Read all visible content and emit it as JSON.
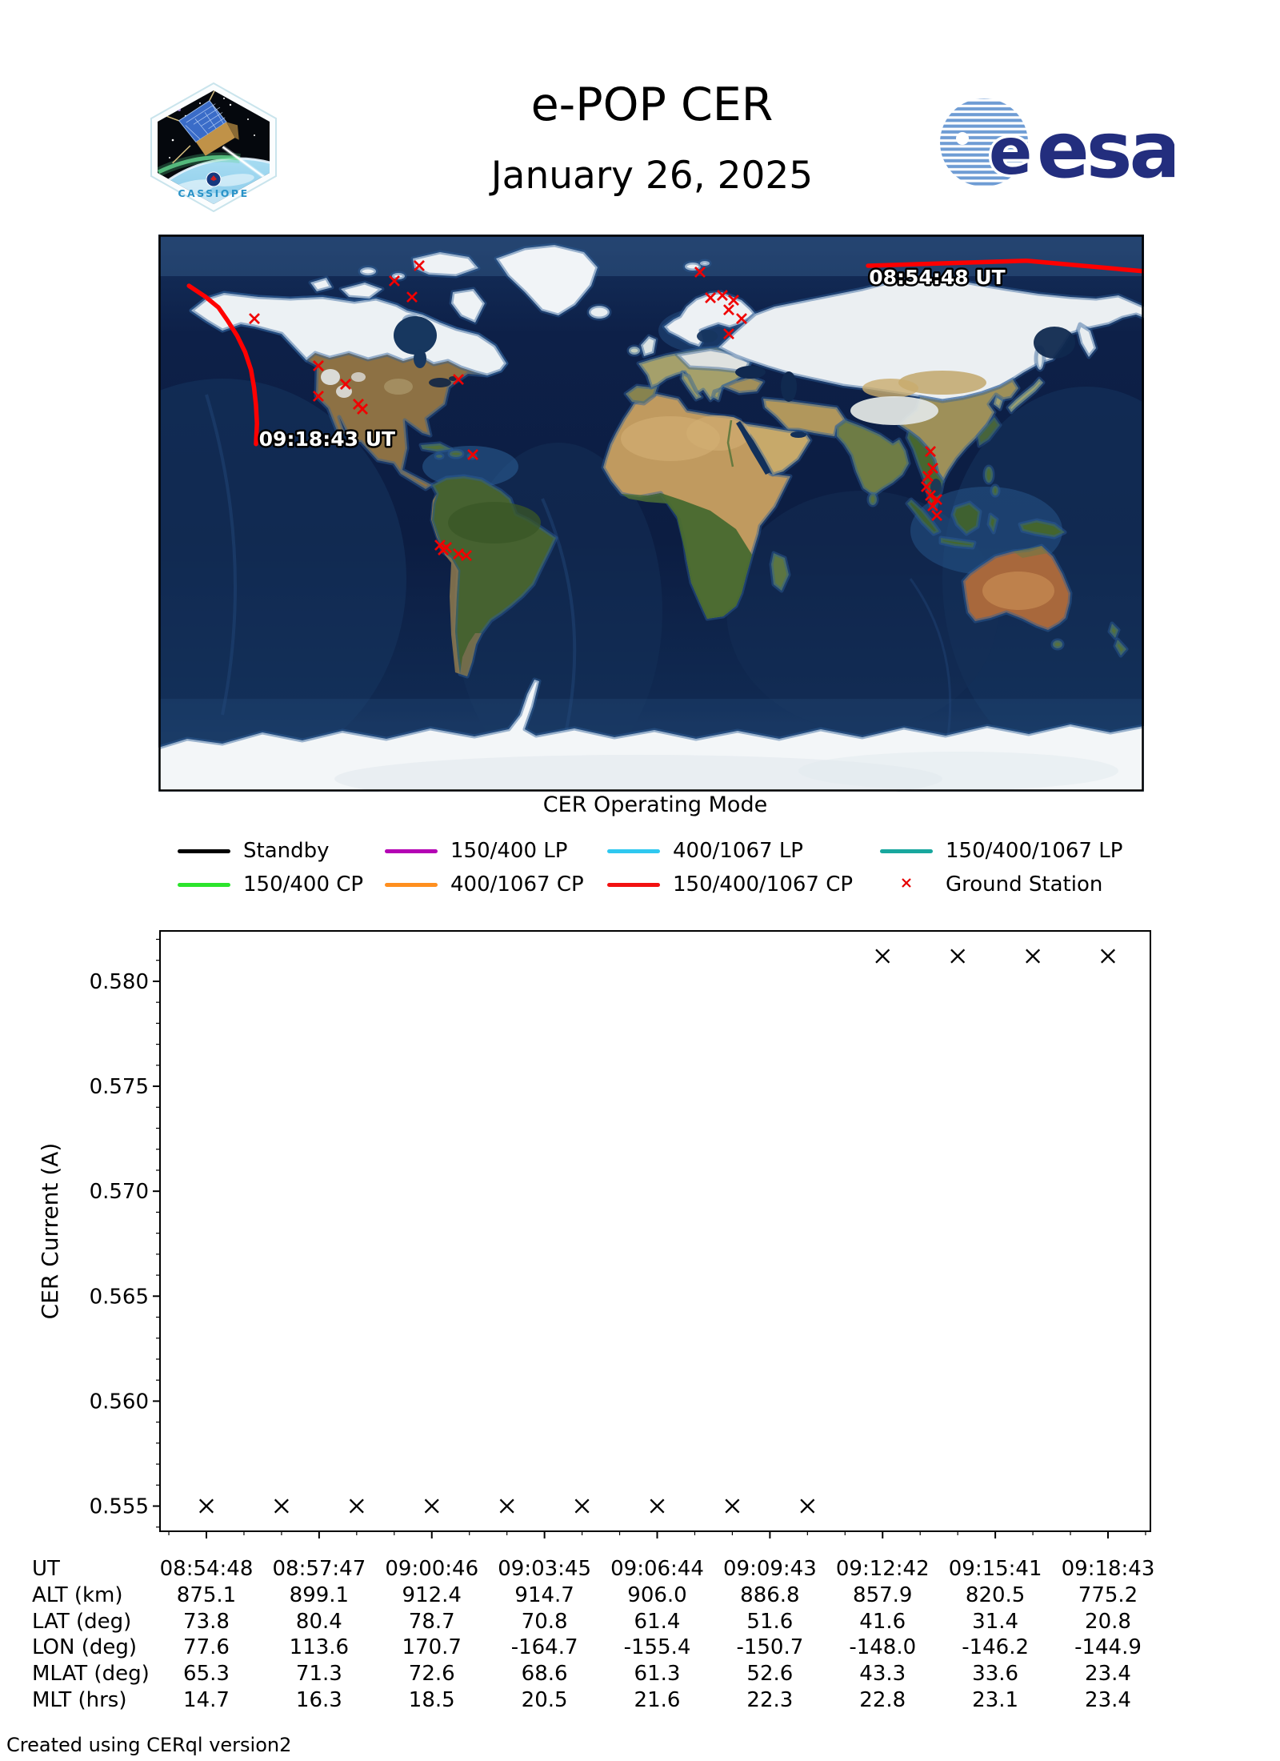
{
  "header": {
    "title": "e-POP CER",
    "date": "January 26, 2025",
    "patch_text": "CASSIOPE",
    "esa_e": "e",
    "esa_wordmark": "esa"
  },
  "map": {
    "pass_start_label": "08:54:48 UT",
    "pass_end_label": "09:18:43 UT",
    "track_color": "#ff0000",
    "station_color": "#f00000",
    "start_track": [
      [
        0.72,
        0.056
      ],
      [
        0.881,
        0.047
      ],
      [
        1.0,
        0.066
      ]
    ],
    "end_track": [
      [
        0.031,
        0.092
      ],
      [
        0.048,
        0.112
      ],
      [
        0.061,
        0.131
      ],
      [
        0.07,
        0.154
      ],
      [
        0.08,
        0.182
      ],
      [
        0.088,
        0.211
      ],
      [
        0.094,
        0.243
      ],
      [
        0.097,
        0.274
      ],
      [
        0.099,
        0.306
      ],
      [
        0.1,
        0.339
      ],
      [
        0.099,
        0.376
      ]
    ],
    "start_label_anchor": [
      0.721,
      0.089
    ],
    "end_label_anchor": [
      0.102,
      0.379
    ],
    "ground_stations": [
      [
        0.2646,
        0.056
      ],
      [
        0.2394,
        0.0833
      ],
      [
        0.2573,
        0.1121
      ],
      [
        0.0974,
        0.1509
      ],
      [
        0.5495,
        0.0675
      ],
      [
        0.5601,
        0.1135
      ],
      [
        0.5722,
        0.1092
      ],
      [
        0.5836,
        0.1178
      ],
      [
        0.5787,
        0.1351
      ],
      [
        0.5917,
        0.1509
      ],
      [
        0.5787,
        0.1782
      ],
      [
        0.1623,
        0.2356
      ],
      [
        0.1899,
        0.2687
      ],
      [
        0.1623,
        0.2902
      ],
      [
        0.2029,
        0.3046
      ],
      [
        0.207,
        0.3132
      ],
      [
        0.3044,
        0.2601
      ],
      [
        0.319,
        0.3951
      ],
      [
        0.2857,
        0.5575
      ],
      [
        0.289,
        0.5661
      ],
      [
        0.2922,
        0.5618
      ],
      [
        0.3044,
        0.5733
      ],
      [
        0.3125,
        0.5762
      ],
      [
        0.7833,
        0.3894
      ],
      [
        0.7857,
        0.4195
      ],
      [
        0.7808,
        0.4339
      ],
      [
        0.7792,
        0.4526
      ],
      [
        0.7833,
        0.4684
      ],
      [
        0.7898,
        0.4756
      ],
      [
        0.7857,
        0.4871
      ],
      [
        0.7898,
        0.5043
      ]
    ]
  },
  "legend": {
    "title": "CER Operating Mode",
    "rows": [
      [
        {
          "label": "Standby",
          "color": "#000000",
          "type": "line"
        },
        {
          "label": "150/400 LP",
          "color": "#b403b4",
          "type": "line"
        },
        {
          "label": "400/1067 LP",
          "color": "#2fc8f0",
          "type": "line"
        },
        {
          "label": "150/400/1067 LP",
          "color": "#18a79e",
          "type": "line"
        }
      ],
      [
        {
          "label": "150/400 CP",
          "color": "#2ce42c",
          "type": "line"
        },
        {
          "label": "400/1067 CP",
          "color": "#ff8f1f",
          "type": "line"
        },
        {
          "label": "150/400/1067 CP",
          "color": "#f21111",
          "type": "line"
        },
        {
          "label": "Ground Station",
          "color": "#e60000",
          "type": "x-marker"
        }
      ]
    ]
  },
  "chart_data": {
    "type": "scatter",
    "title": "",
    "xlabel": "UT",
    "ylabel": "CER Current (A)",
    "x_ticklabels": [
      "08:54:48",
      "08:57:47",
      "09:00:46",
      "09:03:45",
      "09:06:44",
      "09:09:43",
      "09:12:42",
      "09:15:41",
      "09:18:43"
    ],
    "yticks": [
      0.555,
      0.56,
      0.565,
      0.57,
      0.575,
      0.58
    ],
    "ylim": [
      0.5538,
      0.5824
    ],
    "grid": false,
    "series": [
      {
        "name": "Standby",
        "color": "#000000",
        "marker": "x",
        "note": "13 samples at ~2 min cadence spanning 08:54:48 to 09:18:43 UT",
        "values": [
          0.555,
          0.555,
          0.555,
          0.555,
          0.555,
          0.555,
          0.555,
          0.555,
          0.555,
          0.5812,
          0.5812,
          0.5812,
          0.5812
        ]
      }
    ]
  },
  "table": {
    "row_labels": [
      "UT",
      "ALT (km)",
      "LAT (deg)",
      "LON (deg)",
      "MLAT (deg)",
      "MLT (hrs)"
    ],
    "columns": [
      [
        "08:54:48",
        "875.1",
        "73.8",
        "77.6",
        "65.3",
        "14.7"
      ],
      [
        "08:57:47",
        "899.1",
        "80.4",
        "113.6",
        "71.3",
        "16.3"
      ],
      [
        "09:00:46",
        "912.4",
        "78.7",
        "170.7",
        "72.6",
        "18.5"
      ],
      [
        "09:03:45",
        "914.7",
        "70.8",
        "-164.7",
        "68.6",
        "20.5"
      ],
      [
        "09:06:44",
        "906.0",
        "61.4",
        "-155.4",
        "61.3",
        "21.6"
      ],
      [
        "09:09:43",
        "886.8",
        "51.6",
        "-150.7",
        "52.6",
        "22.3"
      ],
      [
        "09:12:42",
        "857.9",
        "41.6",
        "-148.0",
        "43.3",
        "22.8"
      ],
      [
        "09:15:41",
        "820.5",
        "31.4",
        "-146.2",
        "33.6",
        "23.1"
      ],
      [
        "09:18:43",
        "775.2",
        "20.8",
        "-144.9",
        "23.4",
        "23.4"
      ]
    ]
  },
  "footer": {
    "text": "Created using CERql version2"
  }
}
